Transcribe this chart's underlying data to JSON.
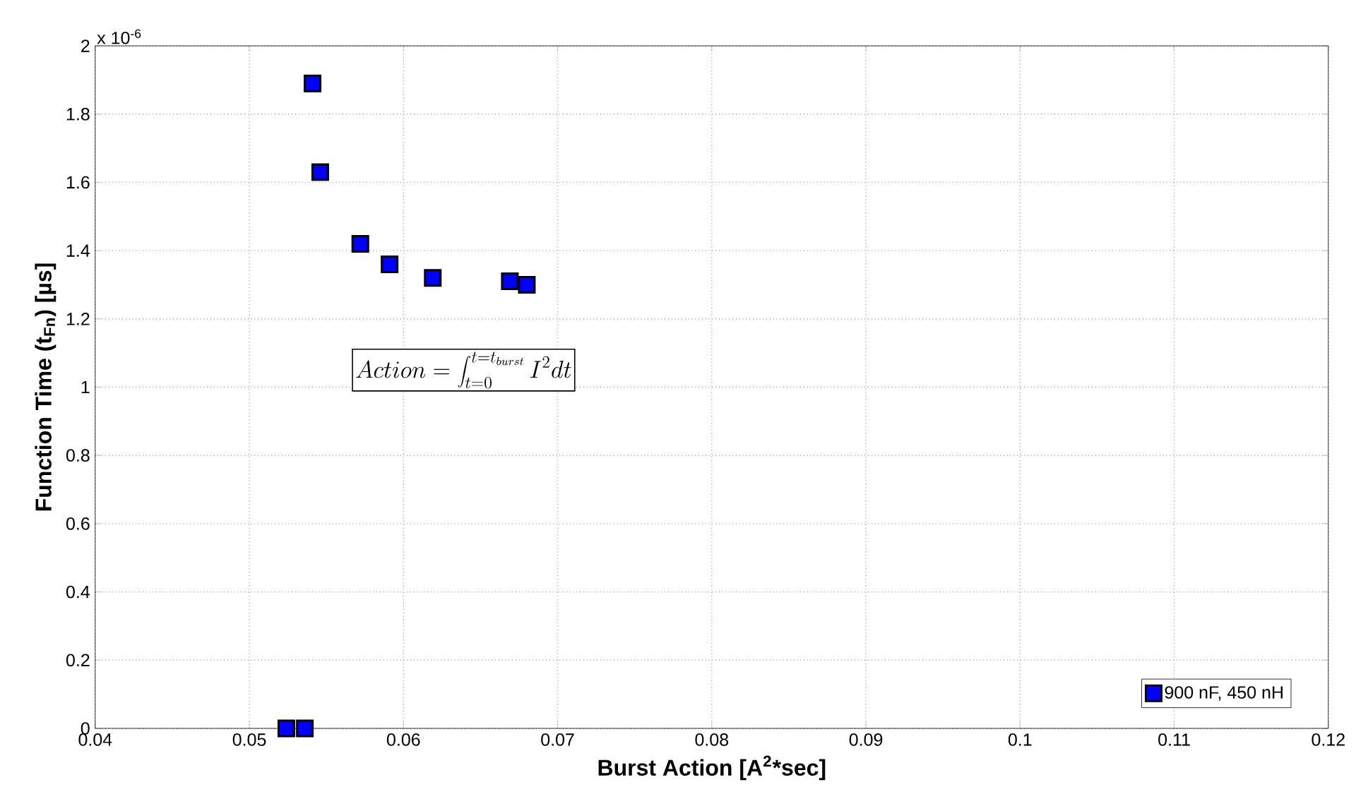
{
  "chart_data": {
    "type": "scatter",
    "xlabel": "Burst Action [A$^{2}$*sec]",
    "ylabel": "Function Time (t$_{Fn}$) [µs]",
    "annotations": [
      "x 10$^{-6}$",
      "Action = \\int_{t=0}^{t=t_{burst}} I^{2}dt"
    ],
    "series": [
      {
        "name": "900 nF, 450 nH",
        "color": "#0000ff",
        "x": [
          0.0524,
          0.0536,
          0.0541,
          0.0546,
          0.0572,
          0.0591,
          0.0619,
          0.0669,
          0.068
        ],
        "values": [
          0,
          0,
          1.89,
          1.63,
          1.42,
          1.36,
          1.32,
          1.31,
          1.3
        ]
      }
    ],
    "xlim": [
      0.04,
      0.12
    ],
    "xticks": [
      0.04,
      0.05,
      0.06,
      0.07,
      0.08,
      0.09,
      0.1,
      0.11,
      0.12
    ],
    "ylim": [
      0,
      2
    ],
    "yticks": [
      0,
      0.2,
      0.4,
      0.6,
      0.8,
      1,
      1.2,
      1.4,
      1.6,
      1.8,
      2
    ],
    "grid": true,
    "legend": "bottom right",
    "marker": "square"
  }
}
